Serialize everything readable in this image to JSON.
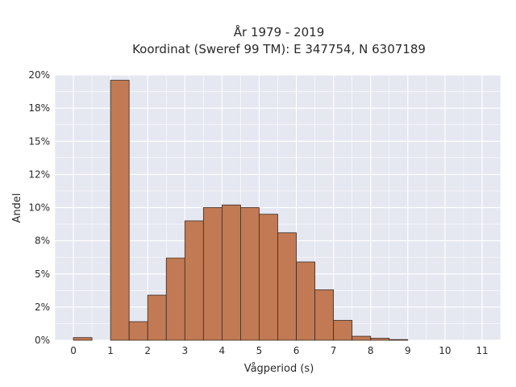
{
  "chart_data": {
    "type": "bar",
    "title": "År 1979 - 2019",
    "subtitle": "Koordinat (Sweref 99 TM): E 347754, N 6307189",
    "xlabel": "Vågperiod (s)",
    "ylabel": "Andel",
    "xlim": [
      -0.5,
      11.5
    ],
    "ylim": [
      0,
      0.2
    ],
    "x_ticks": [
      0,
      1,
      2,
      3,
      4,
      5,
      6,
      7,
      8,
      9,
      10,
      11
    ],
    "y_ticks": [
      {
        "value": 0,
        "label": "0%"
      },
      {
        "value": 0.025,
        "label": "2%"
      },
      {
        "value": 0.05,
        "label": "5%"
      },
      {
        "value": 0.075,
        "label": "8%"
      },
      {
        "value": 0.1,
        "label": "10%"
      },
      {
        "value": 0.125,
        "label": "12%"
      },
      {
        "value": 0.15,
        "label": "15%"
      },
      {
        "value": 0.175,
        "label": "18%"
      },
      {
        "value": 0.2,
        "label": "20%"
      }
    ],
    "bin_width": 0.5,
    "bins": [
      {
        "x0": 0.0,
        "value": 0.002
      },
      {
        "x0": 0.5,
        "value": 0.0
      },
      {
        "x0": 1.0,
        "value": 0.196
      },
      {
        "x0": 1.5,
        "value": 0.014
      },
      {
        "x0": 2.0,
        "value": 0.034
      },
      {
        "x0": 2.5,
        "value": 0.062
      },
      {
        "x0": 3.0,
        "value": 0.09
      },
      {
        "x0": 3.5,
        "value": 0.1
      },
      {
        "x0": 4.0,
        "value": 0.102
      },
      {
        "x0": 4.5,
        "value": 0.1
      },
      {
        "x0": 5.0,
        "value": 0.095
      },
      {
        "x0": 5.5,
        "value": 0.081
      },
      {
        "x0": 6.0,
        "value": 0.059
      },
      {
        "x0": 6.5,
        "value": 0.038
      },
      {
        "x0": 7.0,
        "value": 0.015
      },
      {
        "x0": 7.5,
        "value": 0.003
      },
      {
        "x0": 8.0,
        "value": 0.0015
      },
      {
        "x0": 8.5,
        "value": 0.0005
      }
    ],
    "bar_color": "#c17a54",
    "bar_edge_color": "#3b2a22",
    "plot_background": "#e5e7f1",
    "grid": true,
    "grid_color": "#ffffff"
  }
}
